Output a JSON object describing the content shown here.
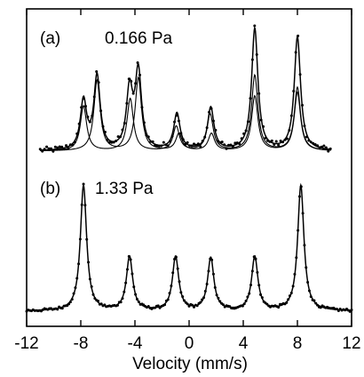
{
  "chart_data": {
    "type": "line",
    "xlabel": "Velocity (mm/s)",
    "ylabel": "",
    "xlim": [
      -12,
      12
    ],
    "x_ticks": [
      -12,
      -8,
      -4,
      0,
      4,
      8,
      12
    ],
    "x_tick_labels": [
      "-12",
      "-8",
      "-4",
      "0",
      "4",
      "8",
      "12"
    ],
    "grid": false,
    "panels": [
      {
        "label": "(a)",
        "pressure": "0.166 Pa",
        "style": "measured points with fitted curve and two fitted sextet components",
        "baseline": 1.0,
        "component_1_peaks": [
          {
            "x": -7.8,
            "depth": 0.37
          },
          {
            "x": -4.35,
            "depth": 0.43
          },
          {
            "x": -0.95,
            "depth": 0.2
          },
          {
            "x": 1.55,
            "depth": 0.3
          },
          {
            "x": 4.85,
            "depth": 0.62
          },
          {
            "x": 8.0,
            "depth": 0.52
          }
        ],
        "component_2_peaks": [
          {
            "x": -6.8,
            "depth": 0.58
          },
          {
            "x": -3.75,
            "depth": 0.6
          },
          {
            "x": -0.75,
            "depth": 0.14
          },
          {
            "x": 1.65,
            "depth": 0.14
          },
          {
            "x": 4.85,
            "depth": 0.45
          },
          {
            "x": 8.0,
            "depth": 0.48
          }
        ],
        "fit_peaks": [
          {
            "x": -7.8,
            "depth": 0.4
          },
          {
            "x": -6.8,
            "depth": 0.6
          },
          {
            "x": -4.4,
            "depth": 0.48
          },
          {
            "x": -3.75,
            "depth": 0.63
          },
          {
            "x": -0.9,
            "depth": 0.3
          },
          {
            "x": 1.6,
            "depth": 0.35
          },
          {
            "x": 4.85,
            "depth": 1.0
          },
          {
            "x": 8.0,
            "depth": 0.93
          }
        ],
        "data_x_range": [
          -11,
          10.5
        ]
      },
      {
        "label": "(b)",
        "pressure": "1.33 Pa",
        "style": "measured points with fitted curve",
        "baseline": 1.0,
        "fit_peaks": [
          {
            "x": -7.8,
            "depth": 1.0
          },
          {
            "x": -4.4,
            "depth": 0.43
          },
          {
            "x": -1.0,
            "depth": 0.43
          },
          {
            "x": 1.6,
            "depth": 0.42
          },
          {
            "x": 4.85,
            "depth": 0.43
          },
          {
            "x": 8.25,
            "depth": 1.0
          }
        ],
        "data_x_range": [
          -12,
          12
        ]
      }
    ]
  }
}
